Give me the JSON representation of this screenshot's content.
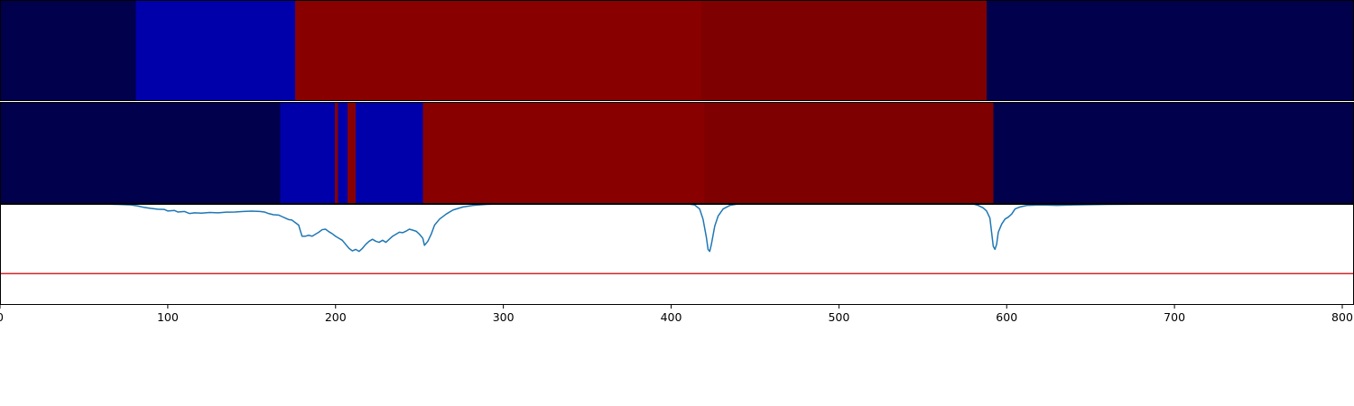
{
  "chart_data": [
    {
      "type": "heatmap",
      "xlim": [
        0,
        807
      ],
      "segments": [
        {
          "x0": 0,
          "x1": 81,
          "color": "#00004c"
        },
        {
          "x0": 81,
          "x1": 176,
          "color": "#0000aa"
        },
        {
          "x0": 176,
          "x1": 418,
          "color": "#880000"
        },
        {
          "x0": 418,
          "x1": 588,
          "color": "#7f0000"
        },
        {
          "x0": 588,
          "x1": 807,
          "color": "#00004c"
        }
      ]
    },
    {
      "type": "heatmap",
      "xlim": [
        0,
        807
      ],
      "segments": [
        {
          "x0": 0,
          "x1": 167,
          "color": "#00004c"
        },
        {
          "x0": 167,
          "x1": 199.5,
          "color": "#0000aa"
        },
        {
          "x0": 199.5,
          "x1": 201.5,
          "color": "#880000"
        },
        {
          "x0": 201.5,
          "x1": 207,
          "color": "#0000aa"
        },
        {
          "x0": 207,
          "x1": 212,
          "color": "#880000"
        },
        {
          "x0": 212,
          "x1": 252,
          "color": "#0000aa"
        },
        {
          "x0": 252,
          "x1": 420,
          "color": "#880000"
        },
        {
          "x0": 420,
          "x1": 592,
          "color": "#7f0000"
        },
        {
          "x0": 592,
          "x1": 807,
          "color": "#00004c"
        }
      ]
    },
    {
      "type": "line",
      "xlim": [
        0,
        807
      ],
      "ylim": [
        0,
        1
      ],
      "xticks": [
        "0",
        "100",
        "200",
        "300",
        "400",
        "500",
        "600",
        "700",
        "800"
      ],
      "line_color": "#1f77b4",
      "threshold": 0.31,
      "threshold_color": "#d62728",
      "points": [
        [
          0,
          1.0
        ],
        [
          60,
          1.0
        ],
        [
          70,
          0.995
        ],
        [
          78,
          0.99
        ],
        [
          82,
          0.98
        ],
        [
          86,
          0.965
        ],
        [
          90,
          0.955
        ],
        [
          94,
          0.948
        ],
        [
          98,
          0.945
        ],
        [
          100,
          0.93
        ],
        [
          104,
          0.935
        ],
        [
          106,
          0.92
        ],
        [
          110,
          0.925
        ],
        [
          113,
          0.905
        ],
        [
          116,
          0.912
        ],
        [
          120,
          0.908
        ],
        [
          125,
          0.915
        ],
        [
          130,
          0.912
        ],
        [
          135,
          0.918
        ],
        [
          140,
          0.92
        ],
        [
          145,
          0.925
        ],
        [
          150,
          0.928
        ],
        [
          155,
          0.925
        ],
        [
          158,
          0.918
        ],
        [
          160,
          0.905
        ],
        [
          163,
          0.893
        ],
        [
          166,
          0.89
        ],
        [
          168,
          0.875
        ],
        [
          170,
          0.86
        ],
        [
          172,
          0.845
        ],
        [
          174,
          0.84
        ],
        [
          176,
          0.815
        ],
        [
          178,
          0.79
        ],
        [
          180,
          0.68
        ],
        [
          182,
          0.68
        ],
        [
          184,
          0.69
        ],
        [
          186,
          0.68
        ],
        [
          188,
          0.7
        ],
        [
          190,
          0.72
        ],
        [
          192,
          0.745
        ],
        [
          194,
          0.75
        ],
        [
          196,
          0.725
        ],
        [
          198,
          0.705
        ],
        [
          200,
          0.68
        ],
        [
          202,
          0.66
        ],
        [
          204,
          0.64
        ],
        [
          206,
          0.6
        ],
        [
          208,
          0.56
        ],
        [
          210,
          0.535
        ],
        [
          212,
          0.55
        ],
        [
          214,
          0.53
        ],
        [
          216,
          0.56
        ],
        [
          218,
          0.6
        ],
        [
          220,
          0.63
        ],
        [
          222,
          0.65
        ],
        [
          224,
          0.63
        ],
        [
          226,
          0.62
        ],
        [
          228,
          0.64
        ],
        [
          230,
          0.62
        ],
        [
          232,
          0.65
        ],
        [
          234,
          0.68
        ],
        [
          236,
          0.7
        ],
        [
          238,
          0.72
        ],
        [
          240,
          0.715
        ],
        [
          242,
          0.73
        ],
        [
          244,
          0.75
        ],
        [
          246,
          0.74
        ],
        [
          248,
          0.73
        ],
        [
          250,
          0.7
        ],
        [
          252,
          0.66
        ],
        [
          253,
          0.59
        ],
        [
          255,
          0.63
        ],
        [
          257,
          0.7
        ],
        [
          259,
          0.79
        ],
        [
          262,
          0.85
        ],
        [
          266,
          0.9
        ],
        [
          270,
          0.94
        ],
        [
          276,
          0.97
        ],
        [
          282,
          0.985
        ],
        [
          290,
          0.995
        ],
        [
          300,
          1.0
        ],
        [
          410,
          1.0
        ],
        [
          414,
          0.99
        ],
        [
          417,
          0.95
        ],
        [
          419,
          0.85
        ],
        [
          421,
          0.67
        ],
        [
          422,
          0.55
        ],
        [
          423,
          0.53
        ],
        [
          424,
          0.6
        ],
        [
          426,
          0.78
        ],
        [
          428,
          0.88
        ],
        [
          431,
          0.95
        ],
        [
          435,
          0.985
        ],
        [
          440,
          1.0
        ],
        [
          580,
          1.0
        ],
        [
          583,
          0.985
        ],
        [
          586,
          0.96
        ],
        [
          588,
          0.93
        ],
        [
          590,
          0.86
        ],
        [
          591,
          0.72
        ],
        [
          592,
          0.58
        ],
        [
          593,
          0.55
        ],
        [
          594,
          0.6
        ],
        [
          595,
          0.72
        ],
        [
          597,
          0.8
        ],
        [
          599,
          0.85
        ],
        [
          601,
          0.87
        ],
        [
          603,
          0.9
        ],
        [
          605,
          0.95
        ],
        [
          608,
          0.97
        ],
        [
          612,
          0.985
        ],
        [
          620,
          0.99
        ],
        [
          630,
          0.985
        ],
        [
          640,
          0.99
        ],
        [
          660,
          0.995
        ],
        [
          700,
          1.0
        ],
        [
          807,
          1.0
        ]
      ]
    }
  ]
}
